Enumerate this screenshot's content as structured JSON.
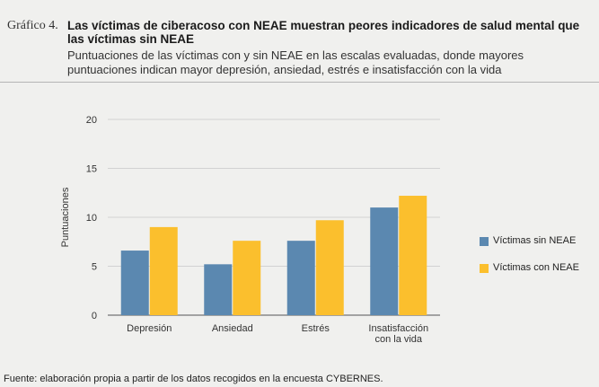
{
  "header": {
    "figure_label": "Gráfico 4.",
    "title": "Las víctimas de ciberacoso con NEAE muestran peores indicadores de salud mental que las víctimas sin NEAE",
    "subtitle": "Puntuaciones de las víctimas con y sin NEAE en las escalas evaluadas, donde mayores puntuaciones indican mayor depresión, ansiedad, estrés e insatisfacción con la vida"
  },
  "source": "Fuente: elaboración propia a partir de los datos recogidos en la encuesta CYBERNES.",
  "chart_data": {
    "type": "bar",
    "categories": [
      "Depresión",
      "Ansiedad",
      "Estrés",
      "Insatisfacción con la vida"
    ],
    "series": [
      {
        "name": "Víctimas sin NEAE",
        "color": "#5b88b0",
        "values": [
          6.6,
          5.2,
          7.6,
          11.0
        ]
      },
      {
        "name": "Víctimas con NEAE",
        "color": "#fbbf2d",
        "values": [
          9.0,
          7.6,
          9.7,
          12.2
        ]
      }
    ],
    "xlabel": "",
    "ylabel": "Puntuaciones",
    "ylim": [
      0,
      20
    ],
    "yticks": [
      0,
      5,
      10,
      15,
      20
    ],
    "grid": true,
    "legend_position": "right"
  }
}
